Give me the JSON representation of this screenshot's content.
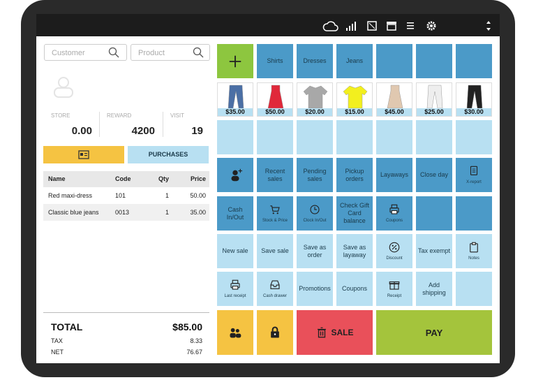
{
  "search": {
    "customer": "Customer",
    "product": "Product"
  },
  "stats": [
    {
      "label": "STORE",
      "value": "0.00"
    },
    {
      "label": "REWARD",
      "value": "4200"
    },
    {
      "label": "VISIT",
      "value": "19"
    }
  ],
  "buttons": {
    "purchases": "PURCHASES"
  },
  "table": {
    "header": [
      "Name",
      "Code",
      "Qty",
      "Price"
    ],
    "rows": [
      [
        "Red maxi-dress",
        "101",
        "1",
        "50.00"
      ],
      [
        "Classic blue jeans",
        "0013",
        "1",
        "35.00"
      ]
    ]
  },
  "totals": {
    "total_label": "TOTAL",
    "total": "$85.00",
    "tax_label": "TAX",
    "tax": "8.33",
    "net_label": "NET",
    "net": "76.67"
  },
  "categories": [
    "Shirts",
    "Dresses",
    "Jeans"
  ],
  "products": [
    "$35.00",
    "$50.00",
    "$20.00",
    "$15.00",
    "$45.00",
    "$25.00",
    "$30.00"
  ],
  "functions": {
    "row1": [
      "Recent sales",
      "Pending sales",
      "Pickup orders",
      "Layaways",
      "Close day",
      "X-report"
    ],
    "row2": [
      "Cash In/Out",
      "Stock & Price",
      "Clock In/Out",
      "Check Gift Card balance",
      "Coupons"
    ],
    "row3": [
      "New sale",
      "Save sale",
      "Save as order",
      "Save as layaway",
      "Discount",
      "Tax exempt",
      "Notes"
    ],
    "row4": [
      "Last receipt",
      "Cash drawer",
      "Promotions",
      "Coupons",
      "Receipt",
      "Add shipping"
    ],
    "sale": "SALE",
    "pay": "PAY"
  }
}
